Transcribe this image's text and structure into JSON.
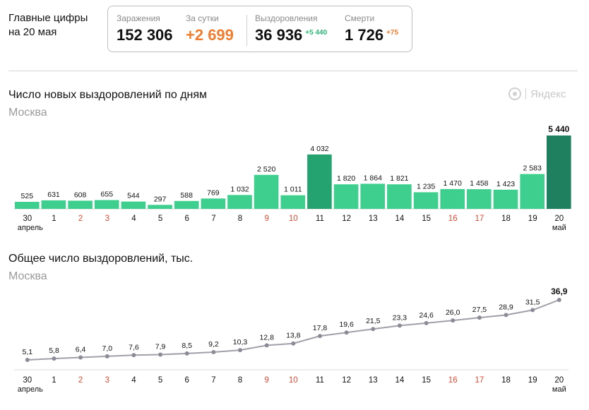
{
  "header": {
    "title_line1": "Главные цифры",
    "title_line2": "на 20 мая"
  },
  "stats": {
    "infected_label": "Заражения",
    "infected_value": "152 306",
    "per_day_label": "За сутки",
    "per_day_value": "+2 699",
    "recovered_label": "Выздоровления",
    "recovered_value": "36 936",
    "recovered_delta": "+5 440",
    "deaths_label": "Смерти",
    "deaths_value": "1 726",
    "deaths_delta": "+75"
  },
  "colors": {
    "green_bar": "#3ecf8e",
    "dark_green_bar": "#24a370",
    "darkest_bar": "#1f8060",
    "orange": "#ef7d2f",
    "green_delta": "#2bb673",
    "weekend_red": "#d84b34",
    "line": "#a0a0aa",
    "dot": "#8c8c98"
  },
  "logo": {
    "text": "Яндекс",
    "icon": "yandex-target-icon"
  },
  "chart_data": [
    {
      "type": "bar",
      "title": "Число новых выздоровлений по дням",
      "subtitle": "Москва",
      "categories": [
        "30",
        "1",
        "2",
        "3",
        "4",
        "5",
        "6",
        "7",
        "8",
        "9",
        "10",
        "11",
        "12",
        "13",
        "14",
        "15",
        "16",
        "17",
        "18",
        "19",
        "20"
      ],
      "category_sublabels": {
        "first": "апрель",
        "last": "май"
      },
      "weekend_indices": [
        2,
        3,
        9,
        10,
        16,
        17
      ],
      "values": [
        525,
        631,
        608,
        655,
        544,
        297,
        588,
        769,
        1032,
        2520,
        1011,
        4032,
        1820,
        1864,
        1821,
        1235,
        1470,
        1458,
        1423,
        2583,
        5440
      ],
      "value_labels": [
        "525",
        "631",
        "608",
        "655",
        "544",
        "297",
        "588",
        "769",
        "1 032",
        "2 520",
        "1 011",
        "4 032",
        "1 820",
        "1 864",
        "1 821",
        "1 235",
        "1 470",
        "1 458",
        "1 423",
        "2 583",
        "5 440"
      ],
      "ylim": [
        0,
        5440
      ]
    },
    {
      "type": "line",
      "title": "Общее число выздоровлений, тыс.",
      "subtitle": "Москва",
      "categories": [
        "30",
        "1",
        "2",
        "3",
        "4",
        "5",
        "6",
        "7",
        "8",
        "9",
        "10",
        "11",
        "12",
        "13",
        "14",
        "15",
        "16",
        "17",
        "18",
        "19",
        "20"
      ],
      "category_sublabels": {
        "first": "апрель",
        "last": "май"
      },
      "weekend_indices": [
        2,
        3,
        9,
        10,
        16,
        17
      ],
      "values": [
        5.1,
        5.8,
        6.4,
        7.0,
        7.6,
        7.9,
        8.5,
        9.2,
        10.3,
        12.8,
        13.8,
        17.8,
        19.6,
        21.5,
        23.3,
        24.6,
        26.0,
        27.5,
        28.9,
        31.5,
        36.9
      ],
      "value_labels": [
        "5,1",
        "5,8",
        "6,4",
        "7,0",
        "7,6",
        "7,9",
        "8,5",
        "9,2",
        "10,3",
        "12,8",
        "13,8",
        "17,8",
        "19,6",
        "21,5",
        "23,3",
        "24,6",
        "26,0",
        "27,5",
        "28,9",
        "31,5",
        "36,9"
      ],
      "ylim": [
        0,
        36.9
      ]
    }
  ]
}
